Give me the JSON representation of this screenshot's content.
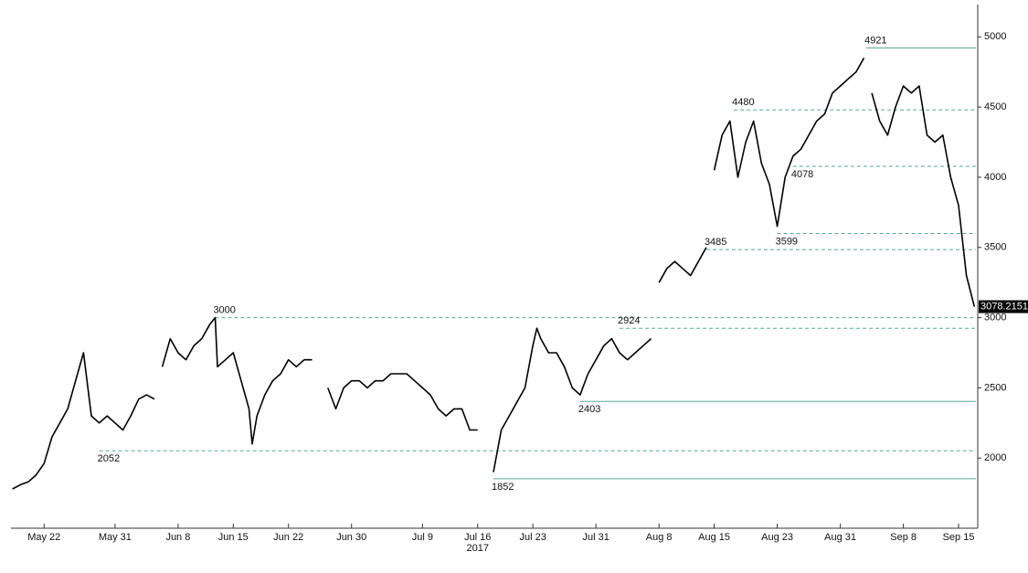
{
  "chart_data": {
    "type": "line",
    "series": [
      {
        "color": "#000000",
        "x": [
          -4,
          -3,
          -2,
          -1,
          0,
          1,
          2,
          3,
          4,
          5,
          6,
          7,
          8,
          9,
          10,
          11,
          12,
          13,
          14,
          14.5,
          15,
          16,
          17,
          18,
          19,
          20,
          21,
          21.7,
          22,
          23,
          24,
          25,
          26,
          26.4,
          27,
          28,
          29,
          30,
          31,
          32,
          33,
          34,
          35,
          36,
          37,
          38,
          39,
          40,
          41,
          42,
          43,
          44,
          45,
          46,
          47,
          48,
          49,
          50,
          51,
          52,
          53,
          54,
          55,
          56,
          57,
          58,
          59,
          60,
          61,
          62,
          62.5,
          63,
          64,
          65,
          66,
          67,
          68,
          69,
          70,
          71,
          72,
          73,
          74,
          75,
          76,
          77,
          77.5,
          78,
          79,
          80,
          81,
          82,
          83,
          84,
          84.5,
          85,
          86,
          87,
          88,
          89,
          90,
          91,
          92,
          93,
          94,
          95,
          96,
          97,
          98,
          99,
          100,
          101,
          102,
          103,
          104,
          104.5,
          105,
          106,
          107,
          108,
          109,
          110,
          111,
          112,
          113,
          114,
          115,
          116,
          117,
          118
        ],
        "values": [
          1780,
          1810,
          1830,
          1880,
          1960,
          2150,
          2250,
          2350,
          2550,
          2750,
          2300,
          2250,
          2300,
          2250,
          2200,
          2300,
          2420,
          2450,
          2420,
          null,
          2650,
          2850,
          2750,
          2700,
          2800,
          2850,
          2950,
          3000,
          2650,
          2700,
          2750,
          2550,
          2350,
          2100,
          2300,
          2450,
          2550,
          2600,
          2700,
          2650,
          2700,
          2700,
          null,
          2500,
          2350,
          2500,
          2550,
          2550,
          2500,
          2550,
          2550,
          2600,
          2600,
          2600,
          2550,
          2500,
          2450,
          2350,
          2300,
          2350,
          2350,
          2200,
          2200,
          null,
          1900,
          2200,
          2300,
          2400,
          2500,
          2800,
          2924,
          2850,
          2750,
          2750,
          2650,
          2500,
          2450,
          2600,
          2700,
          2800,
          2850,
          2750,
          2700,
          2750,
          2800,
          2850,
          null,
          3250,
          3350,
          3400,
          3350,
          3300,
          3400,
          3500,
          null,
          4050,
          4300,
          4400,
          4000,
          4250,
          4400,
          4100,
          3950,
          3650,
          4000,
          4150,
          4200,
          4300,
          4400,
          4450,
          4600,
          4650,
          4700,
          4750,
          4850,
          null,
          4600,
          4400,
          4300,
          4500,
          4650,
          4600,
          4650,
          4300,
          4250,
          4300,
          4000,
          3800,
          3300,
          3078.2151
        ]
      }
    ],
    "levels": [
      {
        "value": 4921,
        "x": 104.3,
        "style": "solid"
      },
      {
        "value": 4480,
        "x": 87.5,
        "style": "dashed"
      },
      {
        "value": 4078,
        "x": 95,
        "style": "dashed"
      },
      {
        "value": 3599,
        "x": 93,
        "style": "dashed"
      },
      {
        "value": 3485,
        "x": 84,
        "style": "dashed"
      },
      {
        "value": 3000,
        "x": 21.7,
        "style": "dashed"
      },
      {
        "value": 2924,
        "x": 73,
        "style": "dashed"
      },
      {
        "value": 2403,
        "x": 68,
        "style": "solid"
      },
      {
        "value": 2052,
        "x": 7,
        "style": "dashed"
      },
      {
        "value": 1852,
        "x": 57,
        "style": "solid"
      }
    ],
    "level_color": "#5aa89c",
    "xlim": [
      -4.2,
      118.2
    ],
    "xticks": [
      {
        "value": 0,
        "label": "May 22"
      },
      {
        "value": 9,
        "label": "May 31"
      },
      {
        "value": 17,
        "label": "Jun 8"
      },
      {
        "value": 24,
        "label": "Jun 15"
      },
      {
        "value": 31,
        "label": "Jun 22"
      },
      {
        "value": 39,
        "label": "Jun 30"
      },
      {
        "value": 48,
        "label": "Jul 9"
      },
      {
        "value": 55,
        "label": "Jul 16"
      },
      {
        "value": 62,
        "label": "Jul 23"
      },
      {
        "value": 70,
        "label": "Jul 31"
      },
      {
        "value": 78,
        "label": "Aug 8"
      },
      {
        "value": 85,
        "label": "Aug 15"
      },
      {
        "value": 93,
        "label": "Aug 23"
      },
      {
        "value": 101,
        "label": "Aug 31"
      },
      {
        "value": 109,
        "label": "Sep 8"
      },
      {
        "value": 116,
        "label": "Sep 15"
      }
    ],
    "year_label": "2017",
    "ylim": [
      1500,
      5230
    ],
    "yticks": [
      2000,
      2500,
      3000,
      3500,
      4000,
      4500,
      5000
    ]
  }
}
